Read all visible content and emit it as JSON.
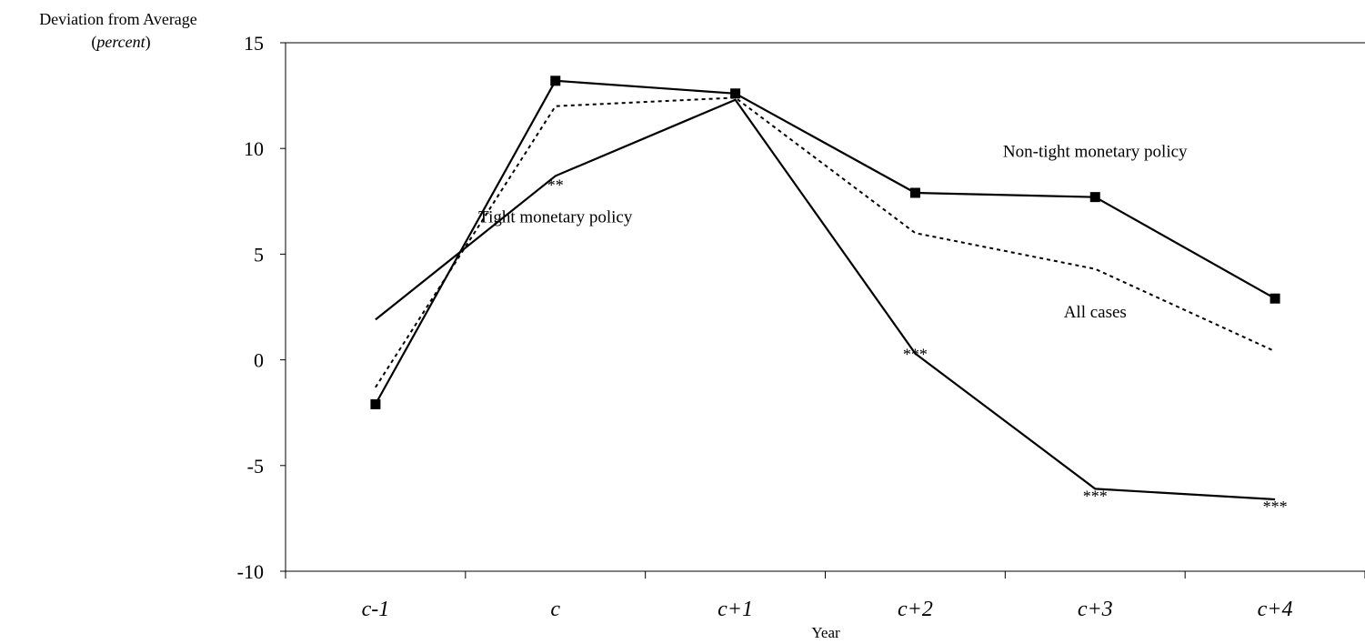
{
  "chart_data": {
    "type": "line",
    "ylabel": "Deviation from Average",
    "ylabel_unit": "percent",
    "xlabel": "Year",
    "categories": [
      "c-1",
      "c",
      "c+1",
      "c+2",
      "c+3",
      "c+4"
    ],
    "ylim": [
      -10,
      15
    ],
    "yticks": [
      15,
      10,
      5,
      0,
      -5,
      -10
    ],
    "grid": false,
    "legend": "none",
    "series": [
      {
        "name": "Non-tight monetary policy",
        "style": "solid-square-markers",
        "values": [
          -2.1,
          13.2,
          12.6,
          7.9,
          7.7,
          2.9
        ]
      },
      {
        "name": "All cases",
        "style": "dotted",
        "values": [
          -1.3,
          12.0,
          12.4,
          6.0,
          4.3,
          0.4
        ]
      },
      {
        "name": "Tight monetary policy",
        "style": "solid",
        "values": [
          1.9,
          8.7,
          12.3,
          0.3,
          -6.1,
          -6.6
        ]
      }
    ],
    "annotations": [
      {
        "text": "Non-tight monetary policy",
        "x": "c+3",
        "y": 9.6
      },
      {
        "text": "Tight monetary policy",
        "x": "c",
        "y": 6.5
      },
      {
        "text": "All cases",
        "x": "c+3",
        "y": 2.0
      },
      {
        "text": "**",
        "x": "c",
        "y": 8.0
      },
      {
        "text": "***",
        "x": "c+2",
        "y": 0.0
      },
      {
        "text": "***",
        "x": "c+3",
        "y": -6.7
      },
      {
        "text": "***",
        "x": "c+4",
        "y": -7.2
      }
    ]
  }
}
